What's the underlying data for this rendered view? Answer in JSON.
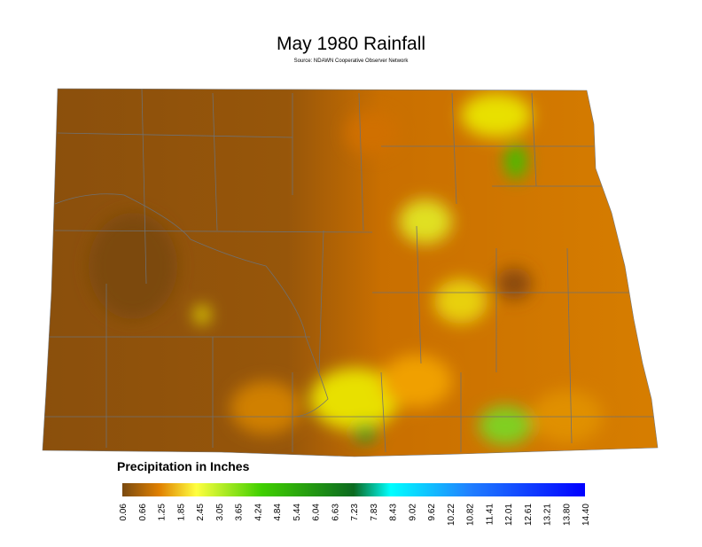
{
  "title": "May 1980 Rainfall",
  "subtitle": "Source: NDAWN Cooperative Observer Network",
  "legend": {
    "title": "Precipitation in Inches",
    "ticks": [
      "0.06",
      "0.66",
      "1.25",
      "1.85",
      "2.45",
      "3.05",
      "3.65",
      "4.24",
      "4.84",
      "5.44",
      "6.04",
      "6.63",
      "7.23",
      "7.83",
      "8.43",
      "9.02",
      "9.62",
      "10.22",
      "10.82",
      "11.41",
      "12.01",
      "12.61",
      "13.21",
      "13.80",
      "14.40"
    ]
  }
}
